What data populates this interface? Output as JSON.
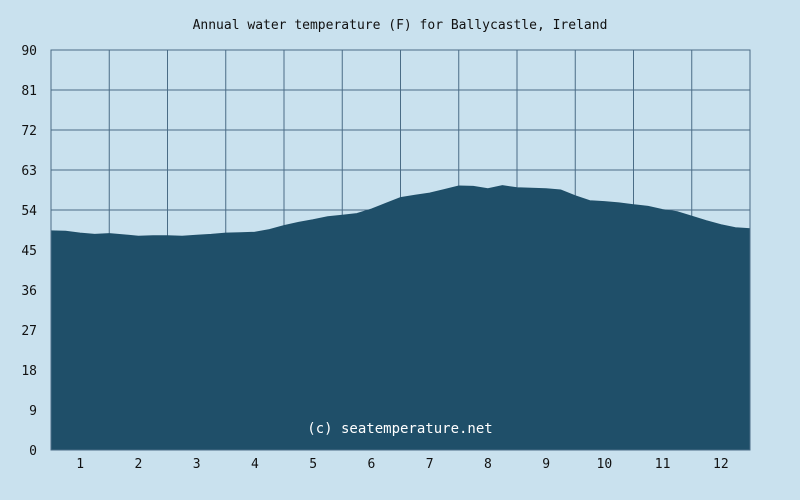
{
  "chart_data": {
    "type": "area",
    "title": "Annual water temperature (F) for Ballycastle, Ireland",
    "xlabel": "",
    "ylabel": "",
    "x_tick_labels": [
      "1",
      "2",
      "3",
      "4",
      "5",
      "6",
      "7",
      "8",
      "9",
      "10",
      "11",
      "12"
    ],
    "y_ticks": [
      0,
      9,
      18,
      27,
      36,
      45,
      54,
      63,
      72,
      81,
      90
    ],
    "xlim": [
      0.5,
      12.5
    ],
    "ylim": [
      0,
      90
    ],
    "grid": true,
    "annotation": "(c) seatemperature.net",
    "colors": {
      "background": "#c9e1ee",
      "plot_background": "#c9e1ee",
      "fill": "#1f4f69",
      "grid": "#4a6c86"
    },
    "series": [
      {
        "x": [
          0.5,
          0.75,
          1.0,
          1.25,
          1.5,
          1.75,
          2.0,
          2.25,
          2.5,
          2.75,
          3.0,
          3.25,
          3.5,
          3.75,
          4.0,
          4.25,
          4.5,
          4.75,
          5.0,
          5.25,
          5.5,
          5.75,
          6.0,
          6.25,
          6.5,
          6.75,
          7.0,
          7.25,
          7.5,
          7.75,
          8.0,
          8.25,
          8.5,
          8.75,
          9.0,
          9.25,
          9.5,
          9.75,
          10.0,
          10.25,
          10.5,
          10.75,
          11.0,
          11.25,
          11.5,
          11.75,
          12.0,
          12.25,
          12.5
        ],
        "values": [
          49.3,
          49.2,
          48.8,
          48.5,
          48.7,
          48.4,
          48.1,
          48.2,
          48.2,
          48.1,
          48.3,
          48.5,
          48.8,
          48.9,
          49.0,
          49.6,
          50.5,
          51.2,
          51.8,
          52.5,
          52.8,
          53.2,
          54.2,
          55.5,
          56.8,
          57.3,
          57.8,
          58.6,
          59.4,
          59.3,
          58.8,
          59.5,
          59.0,
          58.9,
          58.8,
          58.5,
          57.2,
          56.1,
          55.9,
          55.6,
          55.2,
          54.8,
          54.1,
          53.6,
          52.6,
          51.6,
          50.7,
          50.0,
          49.8
        ]
      }
    ]
  }
}
